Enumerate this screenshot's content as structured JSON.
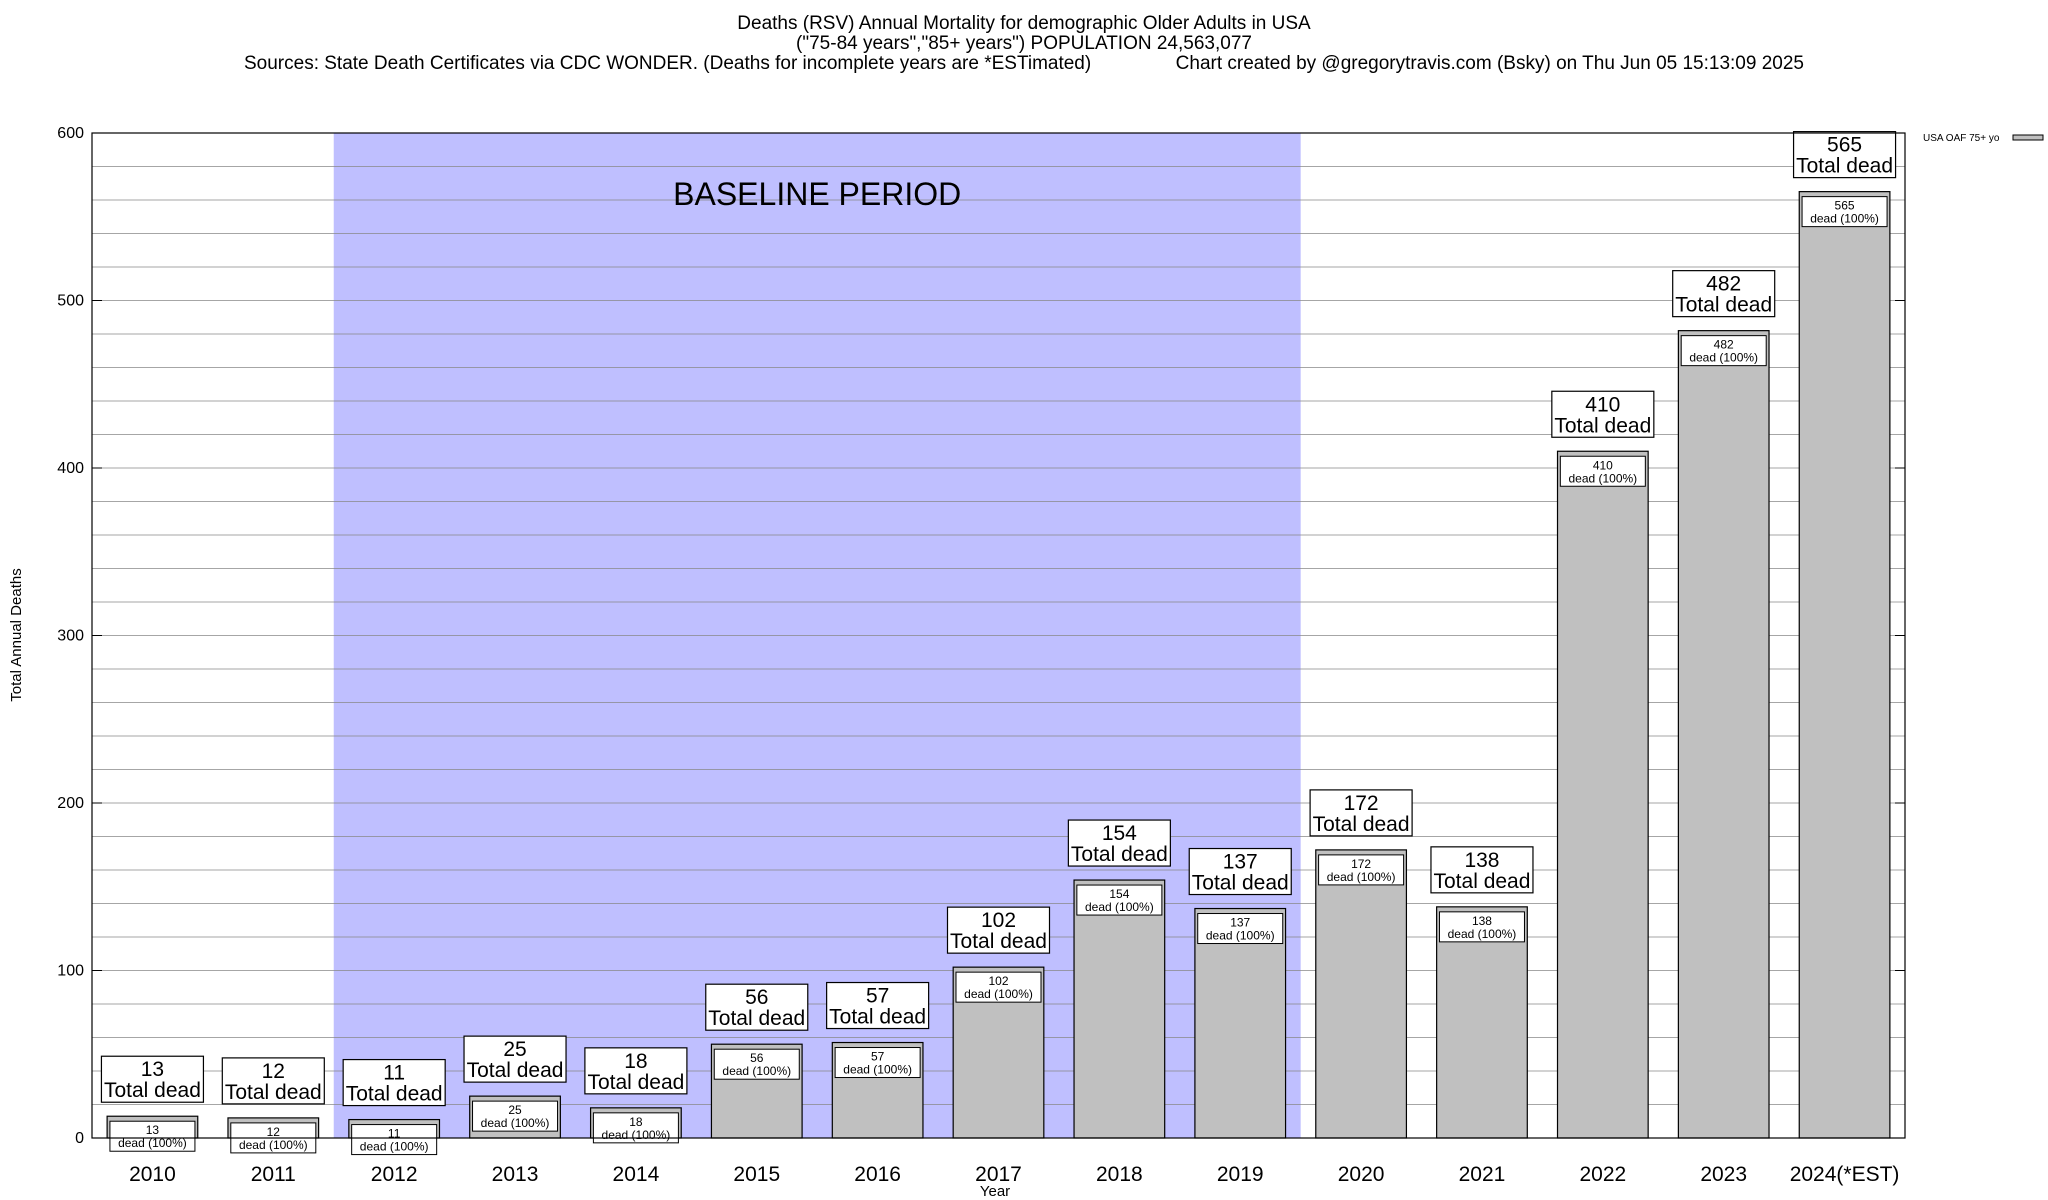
{
  "chart_data": {
    "type": "bar",
    "title": "Deaths (RSV) Annual Mortality for demographic Older Adults in USA",
    "subtitle": "(\"75-84 years\",\"85+ years\") POPULATION 24,563,077",
    "sources": "Sources: State Death Certificates via CDC WONDER. (Deaths for incomplete years are *ESTimated)",
    "credit": "Chart created by @gregorytravis.com (Bsky) on Thu Jun 05 15:13:09 2025",
    "xlabel": "Year",
    "ylabel": "Total Annual Deaths",
    "ylim": [
      0,
      600
    ],
    "yticks": [
      0,
      100,
      200,
      300,
      400,
      500,
      600
    ],
    "minor_grid_step": 20,
    "grid": true,
    "legend": {
      "position": "top-right",
      "entries": [
        {
          "name": "USA OAF 75+ yo",
          "color": "#c0c0c0"
        }
      ]
    },
    "categories": [
      "2010",
      "2011",
      "2012",
      "2013",
      "2014",
      "2015",
      "2016",
      "2017",
      "2018",
      "2019",
      "2020",
      "2021",
      "2022",
      "2023",
      "2024(*EST)"
    ],
    "series": [
      {
        "name": "USA OAF 75+ yo",
        "color": "#c0c0c0",
        "values": [
          13,
          12,
          11,
          25,
          18,
          56,
          57,
          102,
          154,
          137,
          172,
          138,
          410,
          482,
          565
        ]
      }
    ],
    "total_label": "Total dead",
    "inner_label_suffix": "dead (100%)",
    "annotations": [
      {
        "text": "BASELINE PERIOD",
        "from_category": "2012",
        "to_category": "2019",
        "shade_color": "#bfbfff"
      }
    ]
  }
}
